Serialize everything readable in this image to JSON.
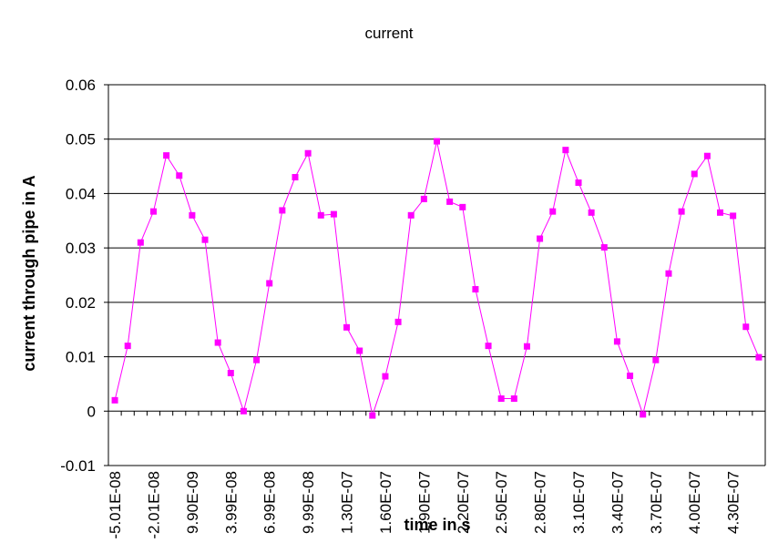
{
  "chart_data": {
    "type": "line",
    "title": "current",
    "x_label": "time in s",
    "y_label": "current through pipe in A",
    "categories": [
      "-5.01E-08",
      null,
      null,
      "-2.01E-08",
      null,
      null,
      "9.90E-09",
      null,
      null,
      "3.99E-08",
      null,
      null,
      "6.99E-08",
      null,
      null,
      "9.99E-08",
      null,
      null,
      "1.30E-07",
      null,
      null,
      "1.60E-07",
      null,
      null,
      "1.90E-07",
      null,
      null,
      "2.20E-07",
      null,
      null,
      "2.50E-07",
      null,
      null,
      "2.80E-07",
      null,
      null,
      "3.10E-07",
      null,
      null,
      "3.40E-07",
      null,
      null,
      "3.70E-07",
      null,
      null,
      "4.00E-07",
      null,
      null,
      "4.30E-07",
      null,
      null
    ],
    "series": [
      {
        "name": "current",
        "color": "#ff00ff",
        "values": [
          0.002,
          0.012,
          0.031,
          0.0367,
          0.047,
          0.0433,
          0.036,
          0.0315,
          0.0126,
          0.007,
          0.0,
          0.0094,
          0.0235,
          0.0369,
          0.043,
          0.0474,
          0.036,
          0.0362,
          0.0154,
          0.0111,
          -0.0008,
          0.0064,
          0.0164,
          0.036,
          0.039,
          0.0496,
          0.0385,
          0.0375,
          0.0224,
          0.012,
          0.0023,
          0.0023,
          0.0119,
          0.0317,
          0.0367,
          0.048,
          0.042,
          0.0365,
          0.0301,
          0.0128,
          0.0065,
          -0.0006,
          0.0094,
          0.0253,
          0.0367,
          0.0436,
          0.0469,
          0.0365,
          0.0359,
          0.0155,
          0.0099
        ]
      }
    ],
    "ylim": [
      -0.01,
      0.06
    ],
    "yticks": [
      -0.01,
      0,
      0.01,
      0.02,
      0.03,
      0.04,
      0.05,
      0.06
    ],
    "grid": true
  }
}
